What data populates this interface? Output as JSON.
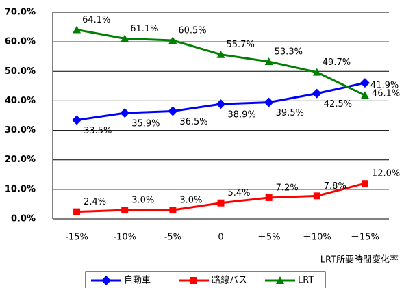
{
  "chart_data": {
    "type": "line",
    "x_label": "LRT所要時間変化率",
    "categories": [
      "-15%",
      "-10%",
      "-5%",
      "0",
      "＋5%",
      "＋10%",
      "＋15%"
    ],
    "series": [
      {
        "name": "自動車",
        "color": "#0000ff",
        "marker": "diamond",
        "values": [
          33.5,
          35.9,
          36.5,
          38.9,
          39.5,
          42.5,
          46.1
        ],
        "value_labels": [
          "33.5%",
          "35.9%",
          "36.5%",
          "38.9%",
          "39.5%",
          "42.5%",
          "46.1%"
        ]
      },
      {
        "name": "路線バス",
        "color": "#ff0000",
        "marker": "square",
        "values": [
          2.4,
          3.0,
          3.0,
          5.4,
          7.2,
          7.8,
          12.0
        ],
        "value_labels": [
          "2.4%",
          "3.0%",
          "3.0%",
          "5.4%",
          "7.2%",
          "7.8%",
          "12.0%"
        ]
      },
      {
        "name": "LRT",
        "color": "#008000",
        "marker": "triangle",
        "values": [
          64.1,
          61.1,
          60.5,
          55.7,
          53.3,
          49.7,
          41.9
        ],
        "value_labels": [
          "64.1%",
          "61.1%",
          "60.5%",
          "55.7%",
          "53.3%",
          "49.7%",
          "41.9%"
        ]
      }
    ],
    "ylim": [
      0,
      70
    ],
    "yticks": [
      {
        "value": 0,
        "label": "0.0%"
      },
      {
        "value": 10,
        "label": "10.0%"
      },
      {
        "value": 20,
        "label": "20.0%"
      },
      {
        "value": 30,
        "label": "30.0%"
      },
      {
        "value": 40,
        "label": "40.0%"
      },
      {
        "value": 50,
        "label": "50.0%"
      },
      {
        "value": 60,
        "label": "60.0%"
      },
      {
        "value": 70,
        "label": "70.0%"
      }
    ],
    "grid": true,
    "legend": "bottom"
  }
}
